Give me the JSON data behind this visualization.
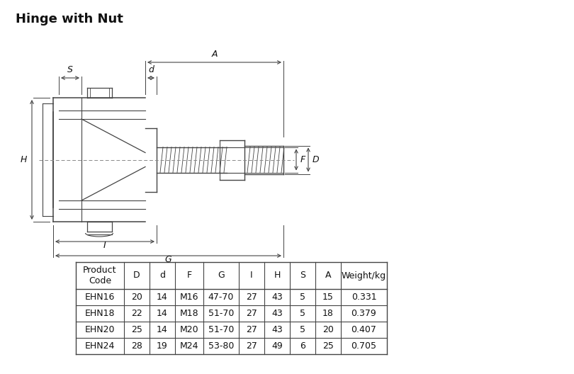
{
  "title": "Hinge with Nut",
  "background_color": "#ffffff",
  "table_headers": [
    "Product\nCode",
    "D",
    "d",
    "F",
    "G",
    "I",
    "H",
    "S",
    "A",
    "Weight/kg"
  ],
  "table_data": [
    [
      "EHN16",
      "20",
      "14",
      "M16",
      "47-70",
      "27",
      "43",
      "5",
      "15",
      "0.331"
    ],
    [
      "EHN18",
      "22",
      "14",
      "M18",
      "51-70",
      "27",
      "43",
      "5",
      "18",
      "0.379"
    ],
    [
      "EHN20",
      "25",
      "14",
      "M20",
      "51-70",
      "27",
      "43",
      "5",
      "20",
      "0.407"
    ],
    [
      "EHN24",
      "28",
      "19",
      "M24",
      "53-80",
      "27",
      "49",
      "6",
      "25",
      "0.705"
    ]
  ],
  "line_color": "#444444",
  "table_line_color": "#444444",
  "title_fontsize": 13,
  "table_fontsize": 9,
  "dim_fontsize": 9
}
